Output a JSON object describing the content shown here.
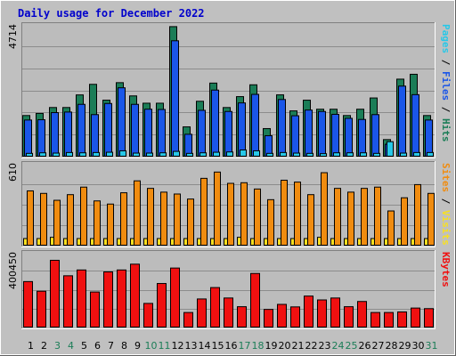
{
  "title": "Daily usage for December 2022",
  "colors": {
    "background": "#c0c0c0",
    "plot_bg": "#bcbcbc",
    "grid": "#8c8c8c",
    "hits": "#1b7d57",
    "files": "#1a56e8",
    "pages": "#27c8e8",
    "visits": "#f08c10",
    "sites": "#f8e020",
    "kbytes": "#f01010",
    "title": "#0000cc",
    "weekday": "#000000",
    "weekend": "#1b7d57"
  },
  "chart_data": [
    {
      "type": "bar",
      "panel": "top",
      "ymax_label": "4714",
      "ylim": [
        0,
        4714
      ],
      "right_label": [
        {
          "text": "Pages",
          "color": "#27c8e8"
        },
        {
          "text": " / ",
          "color": "#000000"
        },
        {
          "text": "Files",
          "color": "#1a56e8"
        },
        {
          "text": " / ",
          "color": "#000000"
        },
        {
          "text": "Hits",
          "color": "#1b7d57"
        }
      ],
      "categories": [
        "1",
        "2",
        "3",
        "4",
        "5",
        "6",
        "7",
        "8",
        "9",
        "10",
        "11",
        "12",
        "13",
        "14",
        "15",
        "16",
        "17",
        "18",
        "19",
        "20",
        "21",
        "22",
        "23",
        "24",
        "25",
        "26",
        "27",
        "28",
        "29",
        "30",
        "31"
      ],
      "series": [
        {
          "name": "Hits",
          "values": [
            1458,
            1532,
            1739,
            1739,
            2181,
            2552,
            1997,
            2611,
            2146,
            1890,
            1890,
            4576,
            1060,
            1958,
            2596,
            1738,
            2121,
            2536,
            1000,
            2183,
            1621,
            1996,
            1679,
            1679,
            1458,
            1679,
            2074,
            614,
            2734,
            2905,
            1458
          ]
        },
        {
          "name": "Files",
          "values": [
            1300,
            1310,
            1560,
            1580,
            1850,
            1490,
            1880,
            2430,
            1850,
            1680,
            1670,
            4080,
            800,
            1640,
            2350,
            1600,
            1900,
            2200,
            750,
            2020,
            1450,
            1650,
            1600,
            1500,
            1360,
            1320,
            1490,
            450,
            2490,
            2190,
            1300
          ]
        },
        {
          "name": "Pages",
          "values": [
            130,
            150,
            140,
            160,
            150,
            160,
            170,
            220,
            140,
            140,
            150,
            200,
            130,
            150,
            170,
            180,
            250,
            220,
            130,
            160,
            140,
            130,
            120,
            150,
            150,
            150,
            130,
            540,
            140,
            160,
            160
          ]
        }
      ]
    },
    {
      "type": "bar",
      "panel": "middle",
      "ymax_label": "610",
      "ylim": [
        0,
        610
      ],
      "right_label": [
        {
          "text": "Sites",
          "color": "#f08c10"
        },
        {
          "text": " / ",
          "color": "#000000"
        },
        {
          "text": "Visits",
          "color": "#f8e020"
        }
      ],
      "categories": [
        "1",
        "2",
        "3",
        "4",
        "5",
        "6",
        "7",
        "8",
        "9",
        "10",
        "11",
        "12",
        "13",
        "14",
        "15",
        "16",
        "17",
        "18",
        "19",
        "20",
        "21",
        "22",
        "23",
        "24",
        "25",
        "26",
        "27",
        "28",
        "29",
        "30",
        "31"
      ],
      "series": [
        {
          "name": "Visits",
          "values": [
            440,
            420,
            365,
            410,
            470,
            360,
            335,
            425,
            520,
            460,
            430,
            415,
            375,
            540,
            590,
            500,
            505,
            455,
            370,
            525,
            510,
            410,
            585,
            460,
            430,
            460,
            470,
            280,
            385,
            490,
            420
          ]
        },
        {
          "name": "Sites",
          "values": [
            60,
            60,
            70,
            60,
            60,
            60,
            60,
            60,
            60,
            60,
            60,
            60,
            60,
            60,
            60,
            60,
            70,
            60,
            60,
            60,
            60,
            60,
            70,
            60,
            60,
            60,
            60,
            60,
            60,
            60,
            60
          ]
        }
      ]
    },
    {
      "type": "bar",
      "panel": "bottom",
      "ymax_label": "400450",
      "ylim": [
        0,
        400450
      ],
      "right_label": [
        {
          "text": "KBytes",
          "color": "#f01010"
        }
      ],
      "categories": [
        "1",
        "2",
        "3",
        "4",
        "5",
        "6",
        "7",
        "8",
        "9",
        "10",
        "11",
        "12",
        "13",
        "14",
        "15",
        "16",
        "17",
        "18",
        "19",
        "20",
        "21",
        "22",
        "23",
        "24",
        "25",
        "26",
        "27",
        "28",
        "29",
        "30",
        "31"
      ],
      "series": [
        {
          "name": "KBytes",
          "values": [
            240000,
            190000,
            350000,
            270000,
            300000,
            186000,
            290000,
            300000,
            330000,
            127000,
            230000,
            310000,
            80000,
            150000,
            209000,
            155000,
            110000,
            282000,
            96000,
            122000,
            109000,
            165000,
            145000,
            155000,
            110000,
            137000,
            80000,
            80000,
            83000,
            103000,
            100000
          ]
        }
      ]
    }
  ]
}
